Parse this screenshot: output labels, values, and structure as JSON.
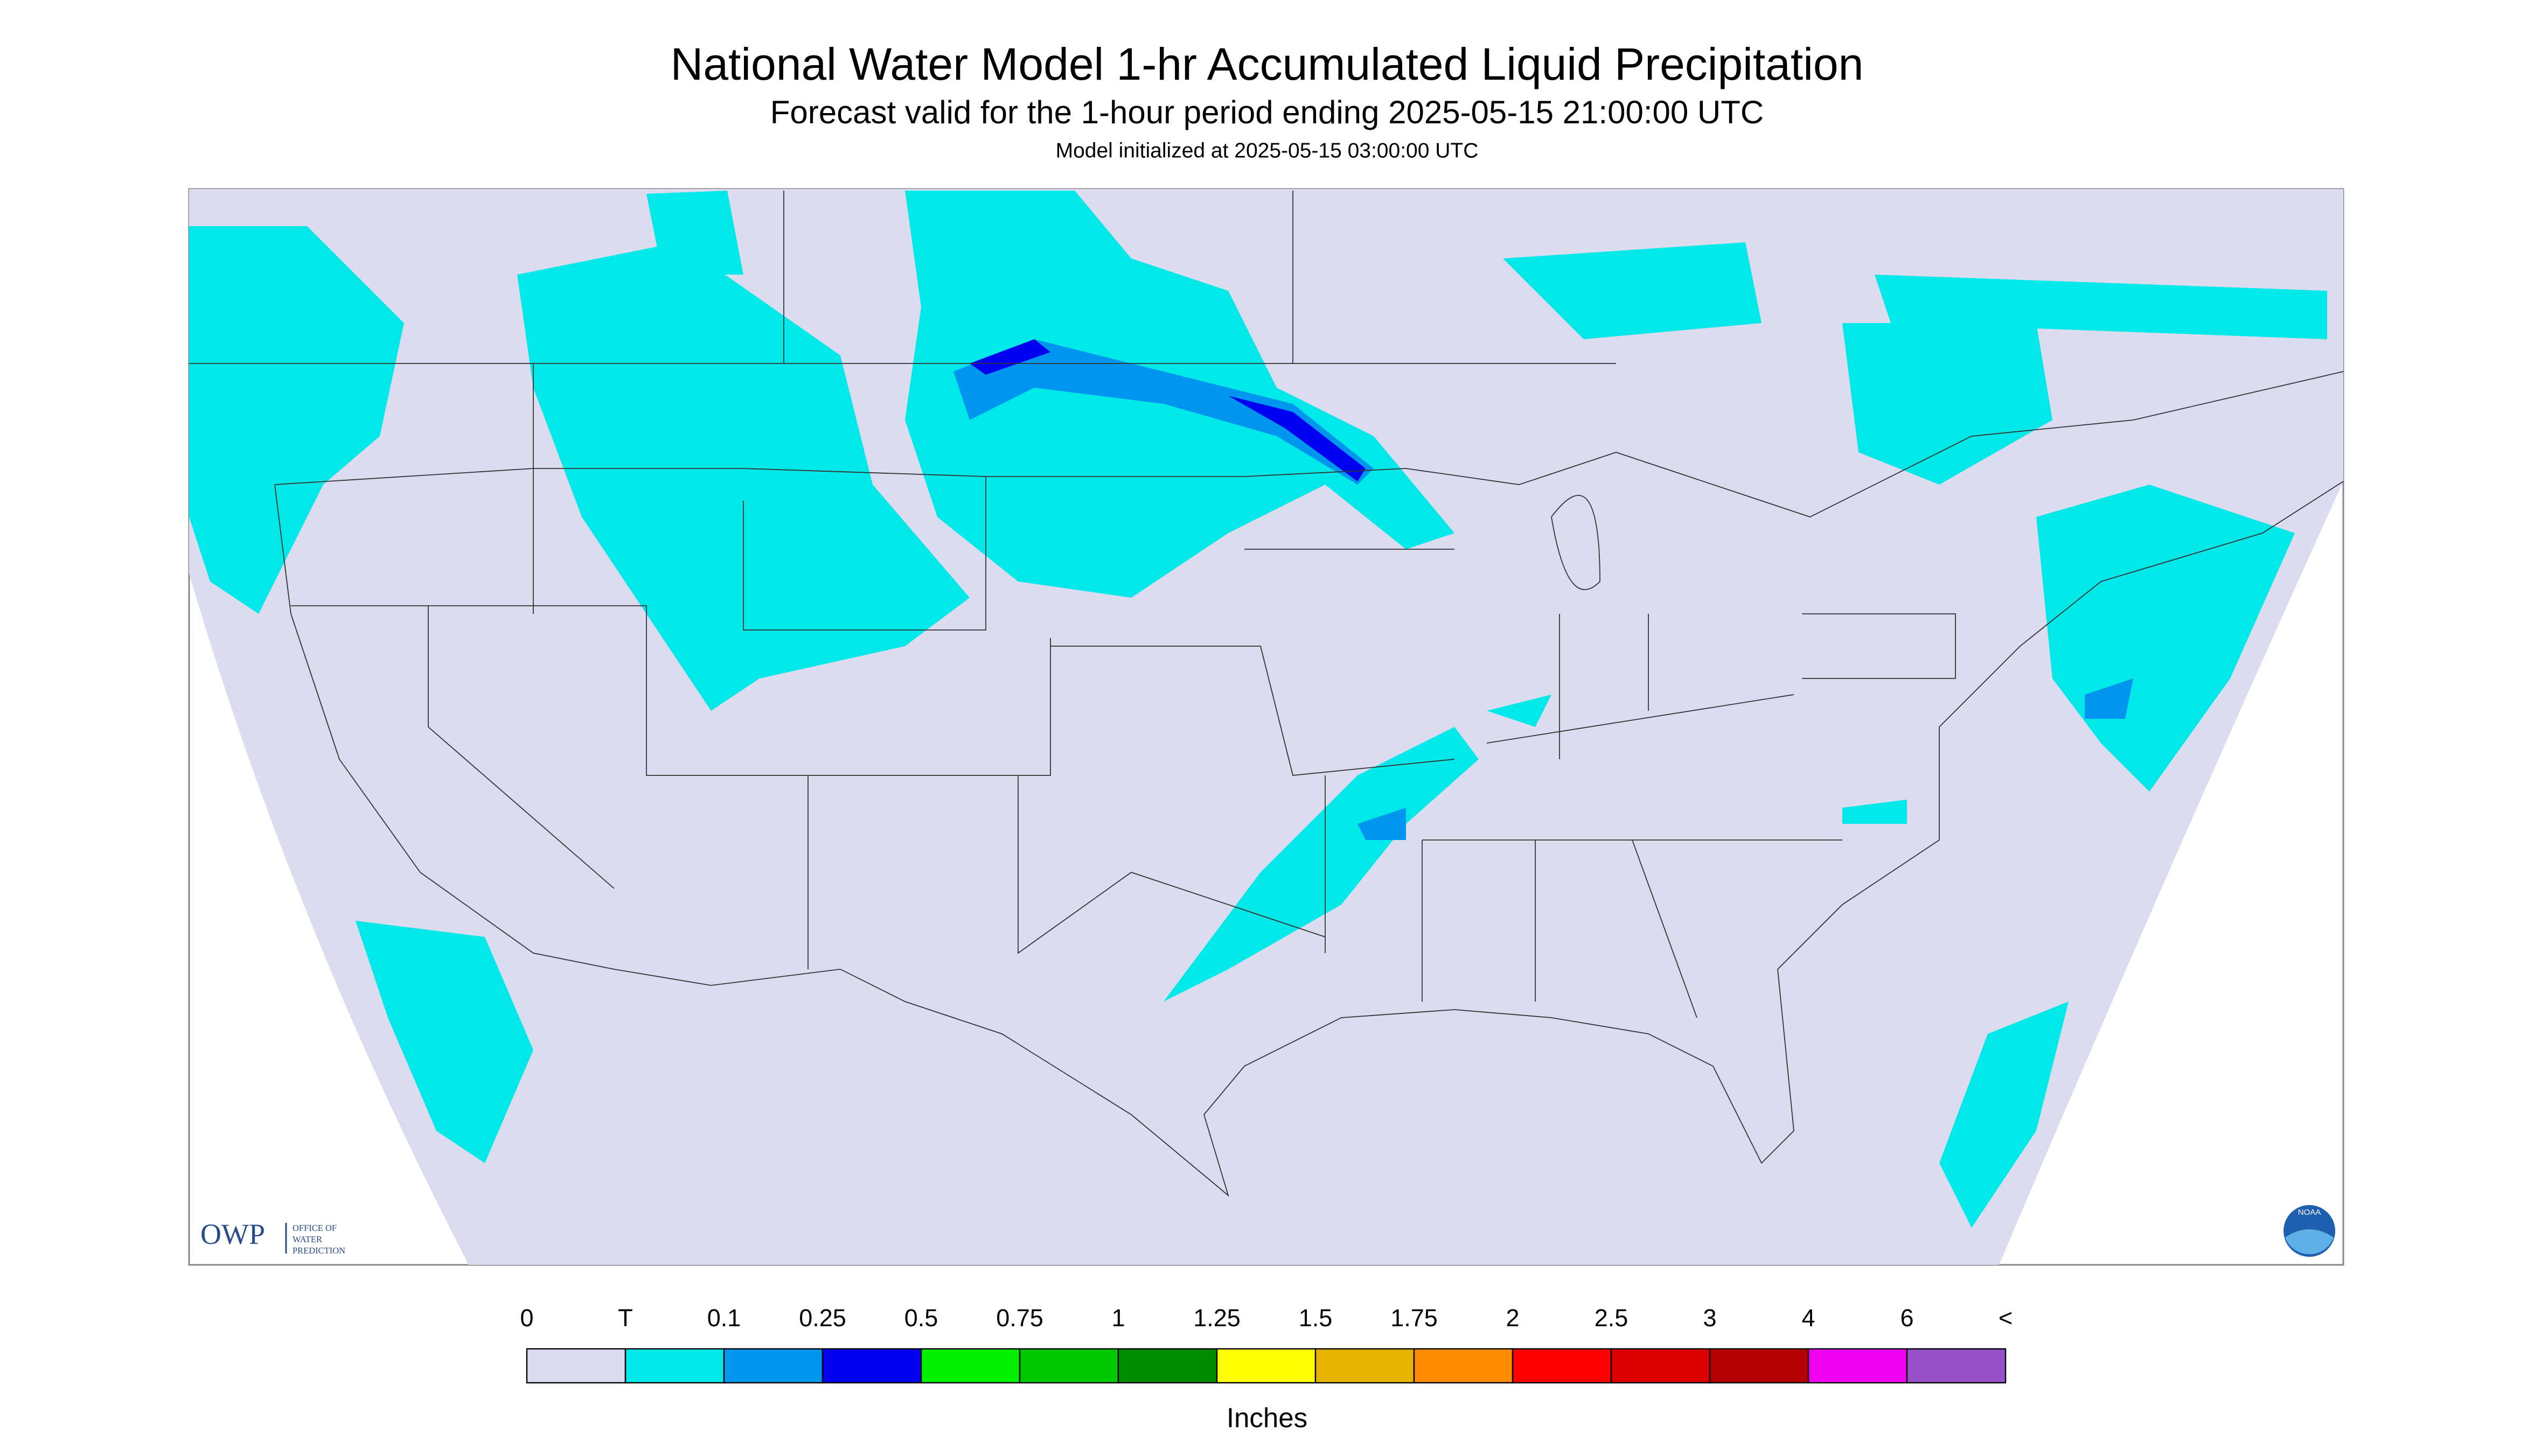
{
  "header": {
    "title": "National Water Model 1-hr Accumulated Liquid Precipitation",
    "subtitle": "Forecast valid for the 1-hour period ending 2025-05-15 21:00:00 UTC",
    "initialized": "Model initialized at 2025-05-15 03:00:00 UTC"
  },
  "legend": {
    "labels": [
      "0",
      "T",
      "0.1",
      "0.25",
      "0.5",
      "0.75",
      "1",
      "1.25",
      "1.5",
      "1.75",
      "2",
      "2.5",
      "3",
      "4",
      "6",
      "<"
    ],
    "colors": [
      "#dcdcf0",
      "#00e8e8",
      "#0096f0",
      "#0000f0",
      "#00f000",
      "#00c800",
      "#008c00",
      "#ffff00",
      "#e6b400",
      "#ff8c00",
      "#ff0000",
      "#dc0000",
      "#b40000",
      "#f000f0",
      "#9650c8"
    ],
    "unit": "Inches"
  },
  "logo": {
    "abbreviation": "OWP",
    "name_lines": [
      "OFFICE OF",
      "WATER",
      "PREDICTION"
    ]
  },
  "noaa_logo": "NOAA"
}
